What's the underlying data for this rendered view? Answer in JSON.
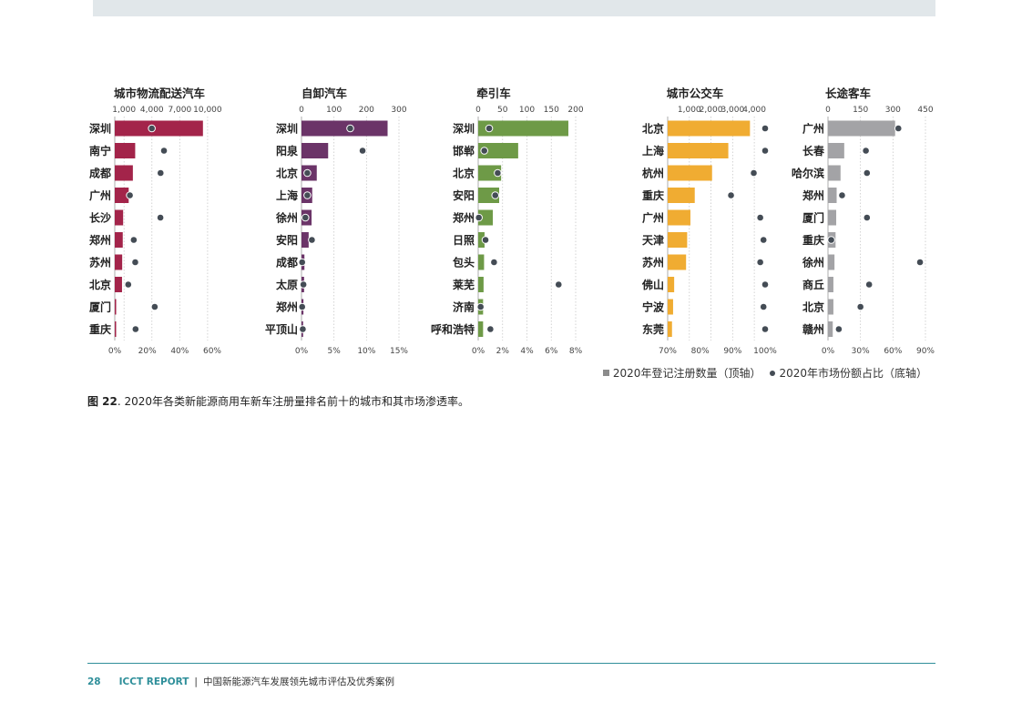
{
  "colors": {
    "logistics": "#a3244a",
    "dump": "#6b3468",
    "tractor": "#6e9a47",
    "bus": "#f0ac32",
    "coach": "#a3a3a6",
    "dot": "#444c55",
    "accent": "#2f8f9a"
  },
  "legend": {
    "bar_label": "2020年登记注册数量（顶轴）",
    "dot_label": "2020年市场份额占比（底轴）"
  },
  "caption": {
    "prefix": "图 22",
    "text": ". 2020年各类新能源商用车新车注册量排名前十的城市和其市场渗透率。"
  },
  "footer": {
    "page": "28",
    "report": "ICCT REPORT",
    "separator": "|",
    "title": "中国新能源汽车发展领先城市评估及优秀案例"
  },
  "chart_data": [
    {
      "type": "bar",
      "title": "城市物流配送汽车",
      "color_key": "logistics",
      "categories": [
        "深圳",
        "南宁",
        "成都",
        "广州",
        "长沙",
        "郑州",
        "苏州",
        "北京",
        "厦门",
        "重庆"
      ],
      "values": [
        9500,
        2200,
        1950,
        1500,
        900,
        860,
        800,
        780,
        150,
        120
      ],
      "share": [
        22.8,
        30.3,
        28.2,
        9.3,
        28.1,
        11.7,
        12.6,
        8.3,
        24.6,
        12.8
      ],
      "top_axis": {
        "ticks": [
          1000,
          4000,
          7000,
          10000
        ],
        "labels": [
          "1,000",
          "4,000",
          "7,000",
          "10,000"
        ],
        "max": 10500
      },
      "bottom_axis": {
        "ticks": [
          0,
          20,
          40,
          60
        ],
        "labels": [
          "0%",
          "20%",
          "40%",
          "60%"
        ],
        "min": 0,
        "max": 60
      }
    },
    {
      "type": "bar",
      "title": "自卸汽车",
      "color_key": "dump",
      "categories": [
        "深圳",
        "阳泉",
        "北京",
        "上海",
        "徐州",
        "安阳",
        "成都",
        "太原",
        "郑州",
        "平顶山"
      ],
      "values": [
        265,
        82,
        47,
        33,
        31,
        22,
        9,
        8,
        6,
        5
      ],
      "share": [
        7.5,
        9.4,
        0.9,
        0.9,
        0.6,
        1.6,
        0.1,
        0.3,
        0.1,
        0.2
      ],
      "top_axis": {
        "ticks": [
          0,
          100,
          200,
          300
        ],
        "labels": [
          "0",
          "100",
          "200",
          "300"
        ],
        "max": 300
      },
      "bottom_axis": {
        "ticks": [
          0,
          5,
          10,
          15
        ],
        "labels": [
          "0%",
          "5%",
          "10%",
          "15%"
        ],
        "min": 0,
        "max": 15
      }
    },
    {
      "type": "bar",
      "title": "牵引车",
      "color_key": "tractor",
      "categories": [
        "深圳",
        "邯郸",
        "北京",
        "安阳",
        "郑州",
        "日照",
        "包头",
        "莱芜",
        "济南",
        "呼和浩特"
      ],
      "values": [
        185,
        82,
        47,
        43,
        30,
        13,
        12,
        11,
        10,
        10
      ],
      "share": [
        0.9,
        0.5,
        1.6,
        1.4,
        0.05,
        0.6,
        1.3,
        6.6,
        0.2,
        1.0
      ],
      "top_axis": {
        "ticks": [
          0,
          50,
          100,
          150,
          200
        ],
        "labels": [
          "0",
          "50",
          "100",
          "150",
          "200"
        ],
        "max": 200
      },
      "bottom_axis": {
        "ticks": [
          0,
          2,
          4,
          6,
          8
        ],
        "labels": [
          "0%",
          "2%",
          "4%",
          "6%",
          "8%"
        ],
        "min": 0,
        "max": 8
      }
    },
    {
      "type": "bar",
      "title": "城市公交车",
      "color_key": "bus",
      "categories": [
        "北京",
        "上海",
        "杭州",
        "重庆",
        "广州",
        "天津",
        "苏州",
        "佛山",
        "宁波",
        "东莞"
      ],
      "values": [
        3800,
        2800,
        2050,
        1250,
        1050,
        900,
        850,
        300,
        250,
        200
      ],
      "share": [
        100,
        100,
        96.5,
        89.5,
        98.5,
        99.5,
        98.5,
        100,
        99.5,
        100
      ],
      "top_axis": {
        "ticks": [
          1000,
          2000,
          3000,
          4000
        ],
        "labels": [
          "1,000",
          "2,000",
          "3,000",
          "4,000"
        ],
        "max": 4500
      },
      "bottom_axis": {
        "ticks": [
          70,
          80,
          90,
          100
        ],
        "labels": [
          "70%",
          "80%",
          "90%",
          "100%"
        ],
        "min": 70,
        "max": 100
      }
    },
    {
      "type": "bar",
      "title": "长途客车",
      "color_key": "coach",
      "categories": [
        "广州",
        "长春",
        "哈尔滨",
        "郑州",
        "厦门",
        "重庆",
        "徐州",
        "商丘",
        "北京",
        "赣州"
      ],
      "values": [
        310,
        75,
        58,
        40,
        38,
        35,
        30,
        25,
        25,
        22
      ],
      "share": [
        65,
        35,
        36,
        13,
        36,
        3,
        85,
        38,
        30,
        10
      ],
      "top_axis": {
        "ticks": [
          0,
          150,
          300,
          450
        ],
        "labels": [
          "0",
          "150",
          "300",
          "450"
        ],
        "max": 450
      },
      "bottom_axis": {
        "ticks": [
          0,
          30,
          60,
          90
        ],
        "labels": [
          "0%",
          "30%",
          "60%",
          "90%"
        ],
        "min": 0,
        "max": 90
      }
    }
  ]
}
